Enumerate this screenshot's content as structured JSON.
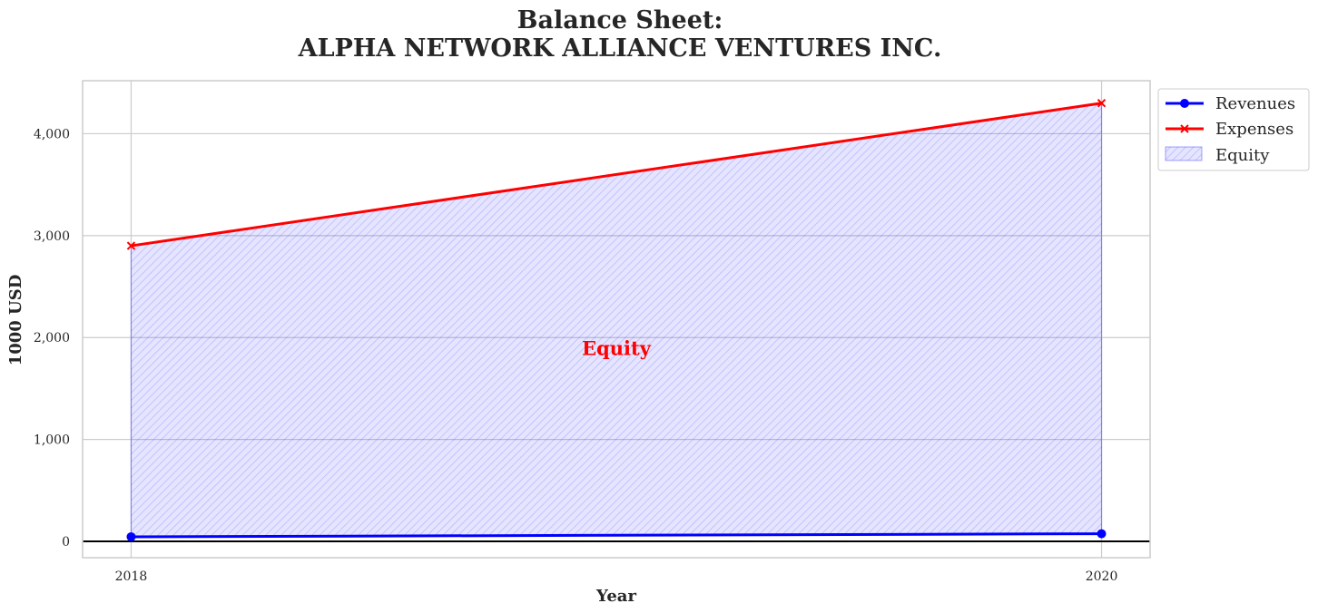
{
  "chart_data": {
    "type": "line",
    "title_lines": [
      "Balance Sheet:",
      "ALPHA NETWORK ALLIANCE VENTURES INC."
    ],
    "xlabel": "Year",
    "ylabel": "1000 USD",
    "x": [
      2018,
      2020
    ],
    "x_tick_labels": [
      "2018",
      "2020"
    ],
    "xlim": [
      2017.9,
      2020.1
    ],
    "ylim": [
      -160,
      4520
    ],
    "y_ticks": [
      0,
      1000,
      2000,
      3000,
      4000
    ],
    "y_tick_labels": [
      "0",
      "1,000",
      "2,000",
      "3,000",
      "4,000"
    ],
    "grid": true,
    "series": [
      {
        "name": "Revenues",
        "values": [
          45,
          75
        ],
        "color": "#0000ff",
        "marker": "circle"
      },
      {
        "name": "Expenses",
        "values": [
          2900,
          4300
        ],
        "color": "#ff0000",
        "marker": "x"
      }
    ],
    "fill": {
      "name": "Equity",
      "between": [
        "Revenues",
        "Expenses"
      ],
      "color": "#0000ff",
      "hatch": "////"
    },
    "annotation": {
      "text": "Equity",
      "x": 2019,
      "y": 1830,
      "color": "#ff0000"
    },
    "legend_position": "outside-top-right",
    "legend": [
      "Revenues",
      "Expenses",
      "Equity"
    ]
  }
}
